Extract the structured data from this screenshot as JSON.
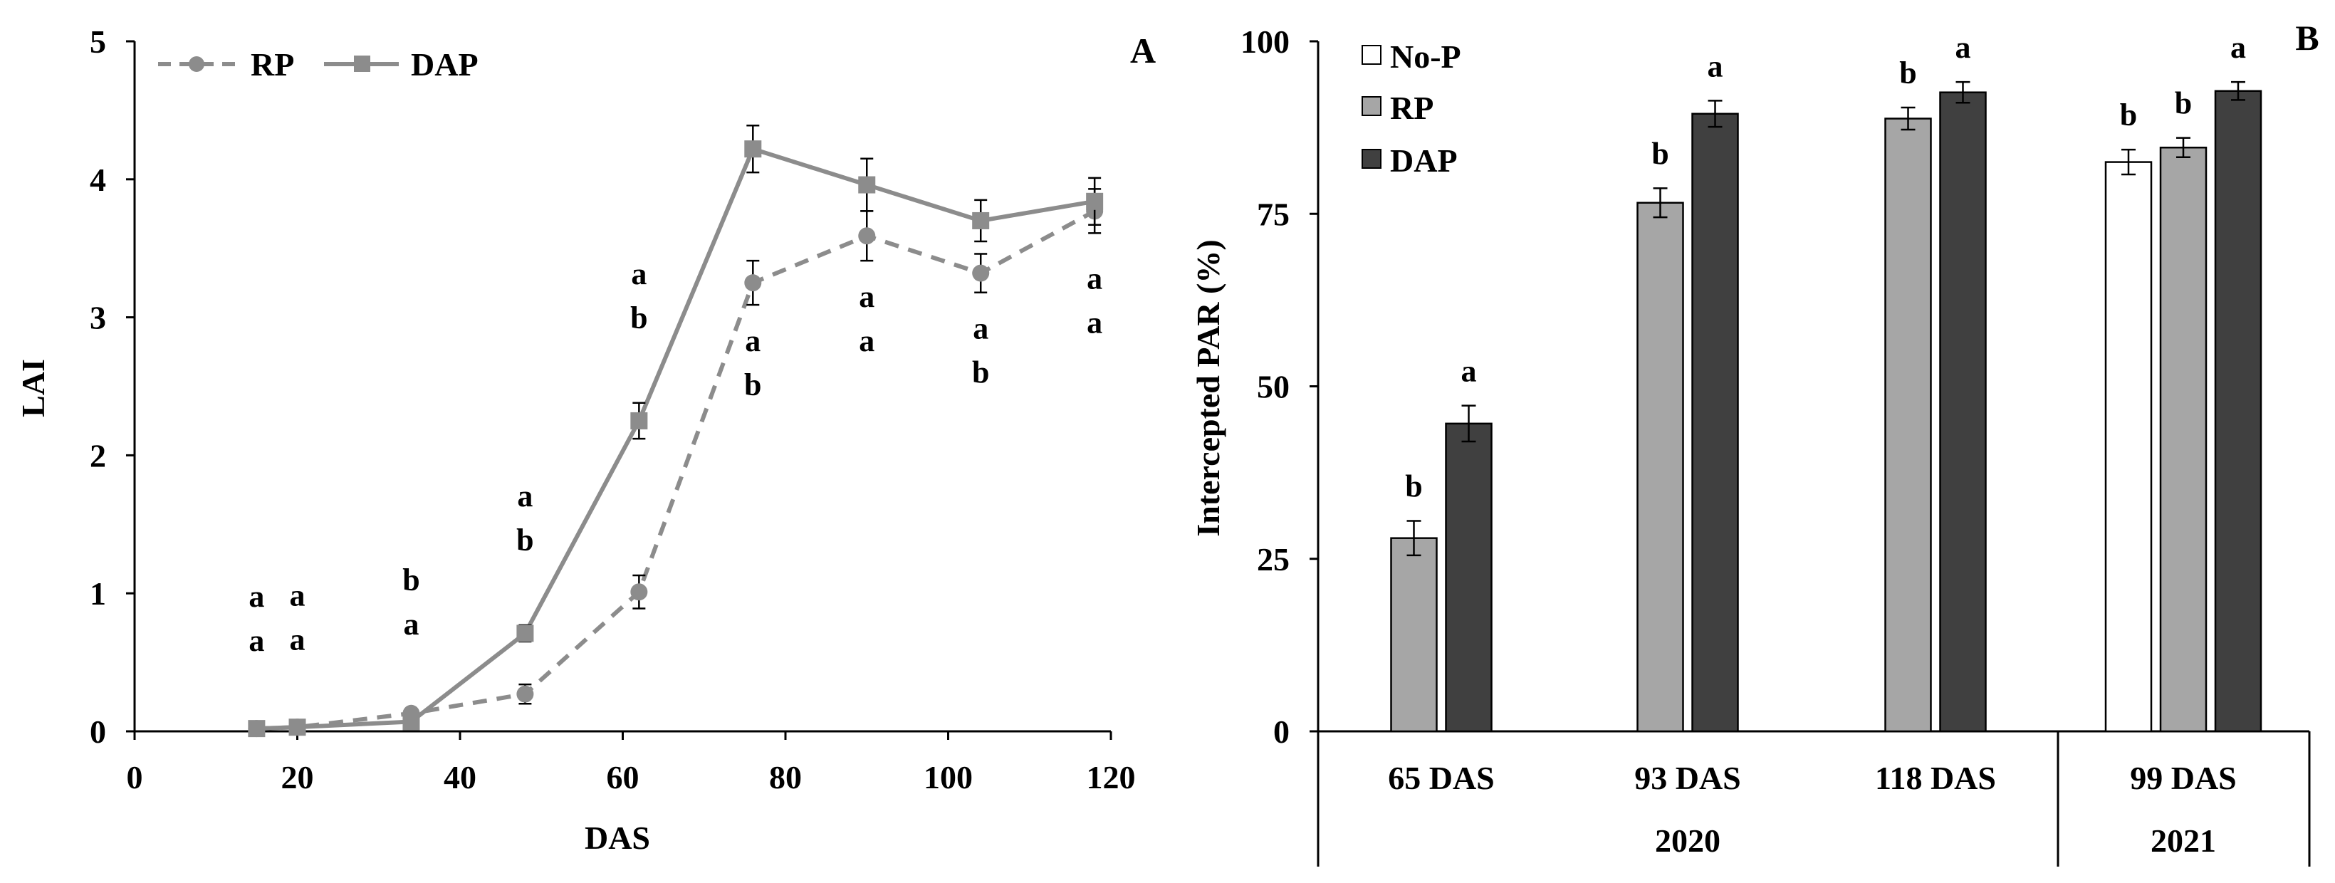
{
  "chart_data": [
    {
      "panel": "A",
      "type": "line",
      "xlabel": "DAS",
      "ylabel": "LAI",
      "xlim": [
        0,
        120
      ],
      "ylim": [
        0,
        5
      ],
      "xticks": [
        0,
        20,
        40,
        60,
        80,
        100,
        120
      ],
      "yticks": [
        0,
        1,
        2,
        3,
        4,
        5
      ],
      "legend_position": "top-left",
      "series": [
        {
          "name": "RP",
          "line_style": "dashed",
          "marker": "circle",
          "color": "#8c8c8c",
          "x": [
            15,
            20,
            34,
            48,
            62,
            76,
            90,
            104,
            118
          ],
          "y": [
            0.02,
            0.03,
            0.13,
            0.27,
            1.01,
            3.25,
            3.59,
            3.32,
            3.77
          ],
          "error": [
            0.02,
            0.02,
            0.03,
            0.07,
            0.12,
            0.16,
            0.18,
            0.14,
            0.16
          ]
        },
        {
          "name": "DAP",
          "line_style": "solid",
          "marker": "square",
          "color": "#8c8c8c",
          "x": [
            15,
            20,
            34,
            48,
            62,
            76,
            90,
            104,
            118
          ],
          "y": [
            0.02,
            0.03,
            0.07,
            0.71,
            2.25,
            4.22,
            3.96,
            3.7,
            3.84
          ],
          "error": [
            0.02,
            0.02,
            0.02,
            0.06,
            0.13,
            0.17,
            0.19,
            0.15,
            0.17
          ]
        }
      ],
      "annotations": [
        {
          "x": 15,
          "upper": "a",
          "lower": "a"
        },
        {
          "x": 20,
          "upper": "a",
          "lower": "a"
        },
        {
          "x": 34,
          "upper": "b",
          "lower": "a"
        },
        {
          "x": 48,
          "upper": "a",
          "lower": "b"
        },
        {
          "x": 62,
          "upper": "a",
          "lower": "b"
        },
        {
          "x": 76,
          "upper": "a",
          "lower": "b"
        },
        {
          "x": 90,
          "upper": "a",
          "lower": "a"
        },
        {
          "x": 104,
          "upper": "a",
          "lower": "b"
        },
        {
          "x": 118,
          "upper": "a",
          "lower": "a"
        }
      ]
    },
    {
      "panel": "B",
      "type": "bar",
      "ylabel": "Intercepted PAR (%)",
      "ylim": [
        0,
        100
      ],
      "yticks": [
        0,
        25,
        50,
        75,
        100
      ],
      "legend_position": "top-left",
      "series": [
        {
          "name": "No-P",
          "color": "#ffffff"
        },
        {
          "name": "RP",
          "color": "#a6a6a6"
        },
        {
          "name": "DAP",
          "color": "#404040"
        }
      ],
      "groups": [
        {
          "category": "65 DAS",
          "year": "2020",
          "bars": [
            {
              "series": "RP",
              "value": 28,
              "error": 2.5,
              "letter": "b"
            },
            {
              "series": "DAP",
              "value": 44.6,
              "error": 2.6,
              "letter": "a"
            }
          ]
        },
        {
          "category": "93 DAS",
          "year": "2020",
          "bars": [
            {
              "series": "RP",
              "value": 76.6,
              "error": 2.1,
              "letter": "b"
            },
            {
              "series": "DAP",
              "value": 89.5,
              "error": 1.9,
              "letter": "a"
            }
          ]
        },
        {
          "category": "118 DAS",
          "year": "2020",
          "bars": [
            {
              "series": "RP",
              "value": 88.8,
              "error": 1.6,
              "letter": "b"
            },
            {
              "series": "DAP",
              "value": 92.6,
              "error": 1.5,
              "letter": "a"
            }
          ]
        },
        {
          "category": "99 DAS",
          "year": "2021",
          "bars": [
            {
              "series": "No-P",
              "value": 82.5,
              "error": 1.8,
              "letter": "b"
            },
            {
              "series": "RP",
              "value": 84.6,
              "error": 1.4,
              "letter": "b"
            },
            {
              "series": "DAP",
              "value": 92.8,
              "error": 1.3,
              "letter": "a"
            }
          ]
        }
      ],
      "years": [
        "2020",
        "2021"
      ]
    }
  ]
}
